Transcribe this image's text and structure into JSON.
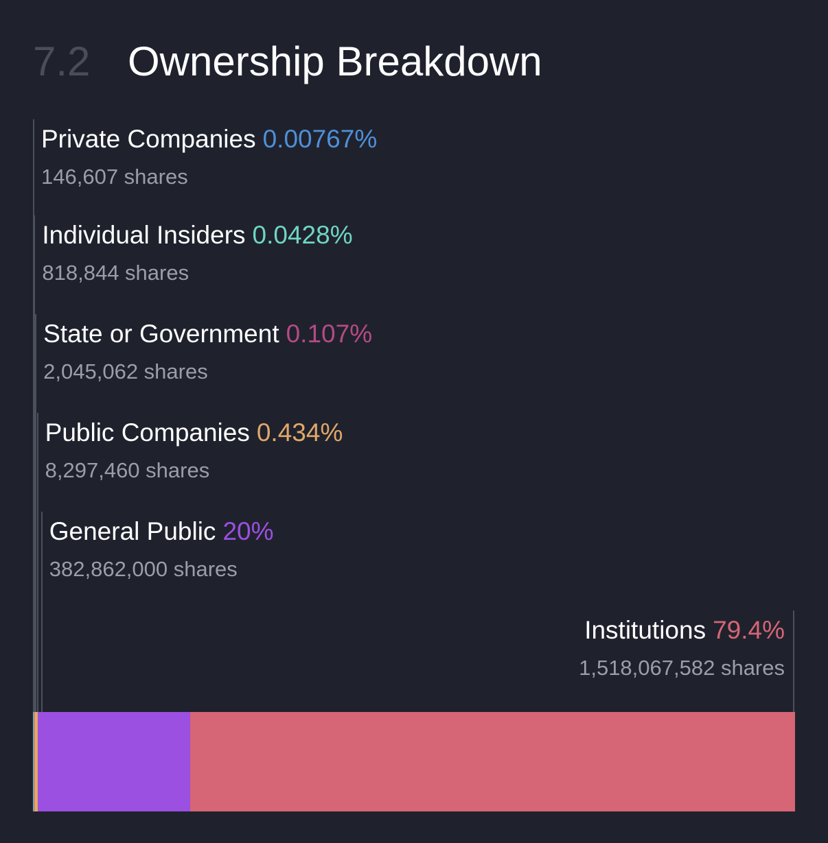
{
  "header": {
    "section_number": "7.2",
    "title": "Ownership Breakdown"
  },
  "chart_data": {
    "type": "bar",
    "orientation": "stacked-horizontal",
    "title": "Ownership Breakdown",
    "categories": [
      "Private Companies",
      "Individual Insiders",
      "State or Government",
      "Public Companies",
      "General Public",
      "Institutions"
    ],
    "series": [
      {
        "values": [
          0.00767,
          0.0428,
          0.107,
          0.434,
          20,
          79.4
        ],
        "value_labels": [
          "0.00767%",
          "0.0428%",
          "0.107%",
          "0.434%",
          "20%",
          "79.4%"
        ],
        "shares": [
          "146,607 shares",
          "818,844 shares",
          "2,045,062 shares",
          "8,297,460 shares",
          "382,862,000 shares",
          "1,518,067,582 shares"
        ],
        "colors": [
          "#4f90d8",
          "#6fd6c4",
          "#b54a86",
          "#e0a86a",
          "#9b50e2",
          "#d66575"
        ]
      }
    ],
    "xlim": [
      0,
      100
    ],
    "grid": false,
    "legend": "none"
  }
}
